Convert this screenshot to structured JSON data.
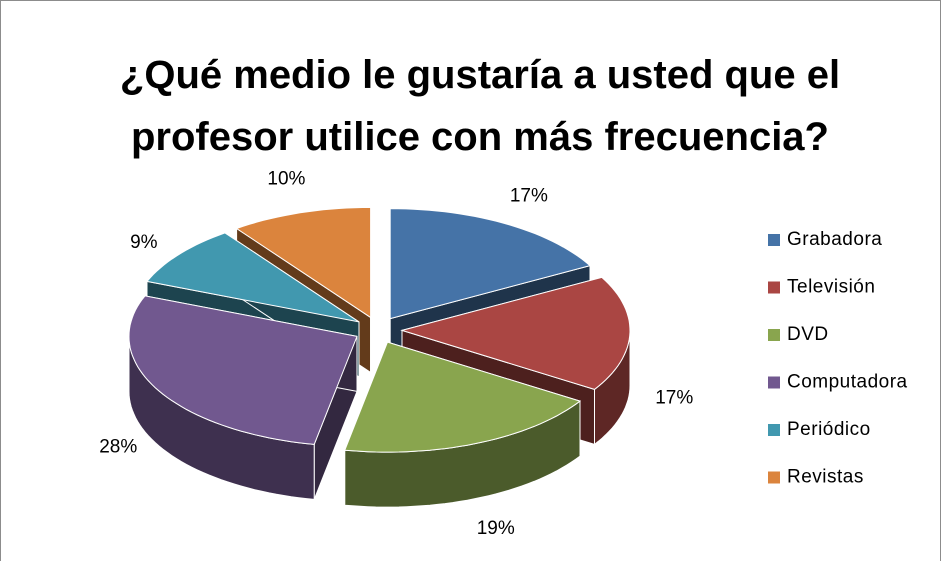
{
  "chart_data": {
    "type": "pie3d",
    "title": "¿Qué medio le gustaría a usted que el profesor utilice con más frecuencia?",
    "categories": [
      "Grabadora",
      "Televisión",
      "DVD",
      "Computadora",
      "Periódico",
      "Revistas"
    ],
    "values": [
      17,
      17,
      19,
      28,
      9,
      10
    ],
    "value_labels": [
      "17%",
      "17%",
      "19%",
      "28%",
      "9%",
      "10%"
    ],
    "colors": [
      "#4573a7",
      "#aa4643",
      "#89a54e",
      "#71588f",
      "#4198af",
      "#db843d"
    ],
    "legend": "right"
  }
}
